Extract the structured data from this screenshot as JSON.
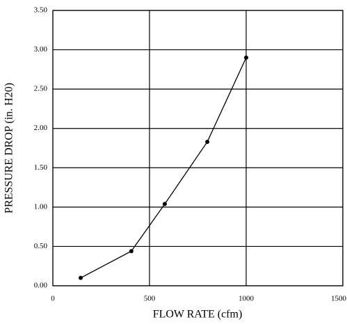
{
  "chart_data": {
    "type": "line",
    "xlabel": "FLOW RATE (cfm)",
    "ylabel": "PRESSURE DROP (in. H20)",
    "x": [
      144,
      406,
      579,
      799,
      1000
    ],
    "series": [
      {
        "color": "#000000",
        "values": [
          0.1,
          0.44,
          1.04,
          1.83,
          2.9
        ]
      }
    ],
    "xlim": [
      0,
      1500
    ],
    "xticks": [
      0,
      500,
      1000,
      1500
    ],
    "ylim": [
      0,
      3.5
    ],
    "yticks": [
      {
        "value": 0,
        "label": "0.00"
      },
      {
        "value": 0.5,
        "label": "0.50"
      },
      {
        "value": 1,
        "label": "1.00"
      },
      {
        "value": 1.5,
        "label": "1.50"
      },
      {
        "value": 2,
        "label": "2.00"
      },
      {
        "value": 2.5,
        "label": "2.50"
      },
      {
        "value": 3,
        "label": "3.00"
      },
      {
        "value": 3.5,
        "label": "3.50"
      }
    ],
    "grid": true,
    "markers": true
  }
}
